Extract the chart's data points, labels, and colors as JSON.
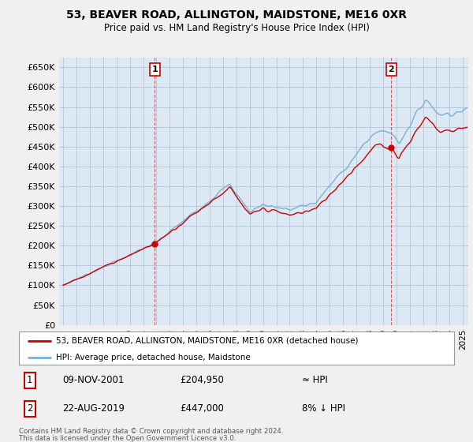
{
  "title": "53, BEAVER ROAD, ALLINGTON, MAIDSTONE, ME16 0XR",
  "subtitle": "Price paid vs. HM Land Registry's House Price Index (HPI)",
  "ylabel_ticks": [
    "£0",
    "£50K",
    "£100K",
    "£150K",
    "£200K",
    "£250K",
    "£300K",
    "£350K",
    "£400K",
    "£450K",
    "£500K",
    "£550K",
    "£600K",
    "£650K"
  ],
  "ytick_vals": [
    0,
    50000,
    100000,
    150000,
    200000,
    250000,
    300000,
    350000,
    400000,
    450000,
    500000,
    550000,
    600000,
    650000
  ],
  "ylim": [
    0,
    675000
  ],
  "background_color": "#f0f0f0",
  "plot_bg": "#dce9f5",
  "grid_color": "#b0c4d8",
  "hpi_color": "#7ab0d4",
  "price_color": "#cc0000",
  "sale1_year": 2001.875,
  "sale1_price": 204950,
  "sale2_year": 2019.625,
  "sale2_price": 447000,
  "legend_line1": "53, BEAVER ROAD, ALLINGTON, MAIDSTONE, ME16 0XR (detached house)",
  "legend_line2": "HPI: Average price, detached house, Maidstone",
  "annotation1_date": "09-NOV-2001",
  "annotation1_price": "£204,950",
  "annotation1_note": "≈ HPI",
  "annotation2_date": "22-AUG-2019",
  "annotation2_price": "£447,000",
  "annotation2_note": "8% ↓ HPI",
  "footer": "Contains HM Land Registry data © Crown copyright and database right 2024.\nThis data is licensed under the Open Government Licence v3.0."
}
